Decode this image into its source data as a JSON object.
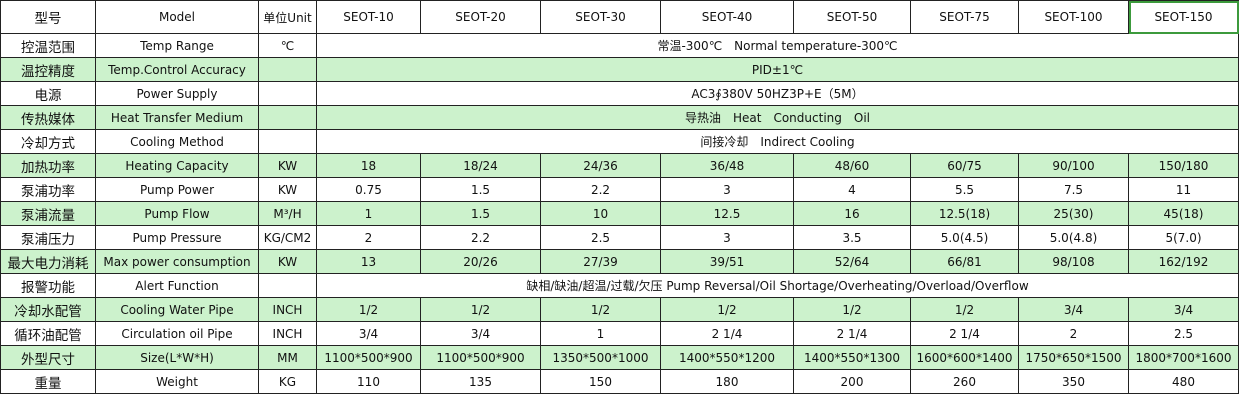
{
  "table": {
    "header": [
      "型号",
      "Model",
      "单位Unit",
      "SEOT-10",
      "SEOT-20",
      "SEOT-30",
      "SEOT-40",
      "SEOT-50",
      "SEOT-75",
      "SEOT-100",
      "SEOT-150"
    ],
    "rows": [
      [
        "控温范围",
        "Temp Range",
        "℃",
        "常温-300℃　Normal temperature-300℃"
      ],
      [
        "温控精度",
        "Temp.Control Accuracy",
        "PID±1℃"
      ],
      [
        "电源",
        "Power Supply",
        "AC3∮380V 50HZ3P+E（5M）"
      ],
      [
        "传热媒体",
        "Heat Transfer Medium",
        "导热油　Heat　Conducting　Oil"
      ],
      [
        "冷却方式",
        "Cooling Method",
        "间接冷却　Indirect Cooling"
      ],
      [
        "加热功率",
        "Heating Capacity",
        "KW",
        "18",
        "18/24",
        "24/36",
        "36/48",
        "48/60",
        "60/75",
        "90/100",
        "150/180"
      ],
      [
        "泵浦功率",
        "Pump Power",
        "KW",
        "0.75",
        "1.5",
        "2.2",
        "3",
        "4",
        "5.5",
        "7.5",
        "11"
      ],
      [
        "泵浦流量",
        "Pump Flow",
        "M³/H",
        "1",
        "1.5",
        "10",
        "12.5",
        "16",
        "12.5(18)",
        "25(30)",
        "45(18)"
      ],
      [
        "泵浦压力",
        "Pump Pressure",
        "KG/CM2",
        "2",
        "2.2",
        "2.5",
        "3",
        "3.5",
        "5.0(4.5)",
        "5.0(4.8)",
        "5(7.0)"
      ],
      [
        "最大电力消耗",
        "Max power consumption",
        "KW",
        "13",
        "20/26",
        "27/39",
        "39/51",
        "52/64",
        "66/81",
        "98/108",
        "162/192"
      ],
      [
        "报警功能",
        "Alert Function",
        "缺相/缺油/超温/过载/欠压 Pump Reversal/Oil Shortage/Overheating/Overload/Overflow"
      ],
      [
        "冷却水配管",
        "Cooling Water Pipe",
        "INCH",
        "1/2",
        "1/2",
        "1/2",
        "1/2",
        "1/2",
        "1/2",
        "3/4",
        "3/4"
      ],
      [
        "循环油配管",
        "Circulation oil Pipe",
        "INCH",
        "3/4",
        "3/4",
        "1",
        "2 1/4",
        "2 1/4",
        "2 1/4",
        "2",
        "2.5"
      ],
      [
        "外型尺寸",
        "Size(L*W*H)",
        "MM",
        "1100*500*900",
        "1100*500*900",
        "1350*500*1000",
        "1400*550*1200",
        "1400*550*1300",
        "1600*600*1400",
        "1750*650*1500",
        "1800*700*1600"
      ],
      [
        "重量",
        "Weight",
        "KG",
        "110",
        "135",
        "150",
        "180",
        "200",
        "260",
        "350",
        "480"
      ]
    ]
  }
}
